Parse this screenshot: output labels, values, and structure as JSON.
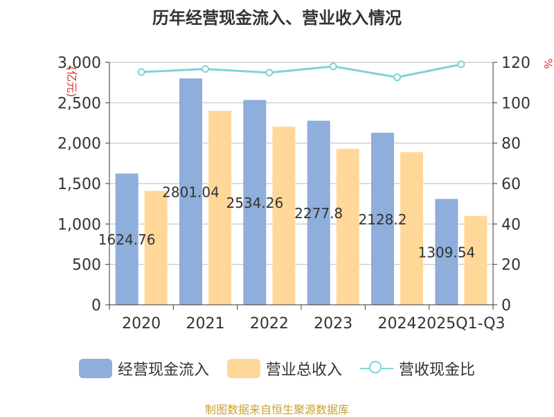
{
  "chart_data": {
    "type": "bar",
    "title": "历年经营现金流入、营业收入情况",
    "categories": [
      "2020",
      "2021",
      "2022",
      "2023",
      "2024",
      "2025Q1-Q3"
    ],
    "series": [
      {
        "name": "经营现金流入",
        "type": "bar",
        "axis": "left",
        "values": [
          1624.76,
          2801.04,
          2534.26,
          2277.8,
          2128.2,
          1309.54
        ],
        "data_labels": [
          "1624.76",
          "2801.04",
          "2534.26",
          "2277.8",
          "2128.2",
          "1309.54"
        ],
        "color": "#8eaedb"
      },
      {
        "name": "营业总收入",
        "type": "bar",
        "axis": "left",
        "values": [
          1410,
          2400,
          2205,
          1930,
          1890,
          1100
        ],
        "color": "#ffd899"
      },
      {
        "name": "营收现金比",
        "type": "line",
        "axis": "right",
        "values": [
          115.2,
          116.7,
          114.9,
          118.0,
          112.6,
          119.0
        ],
        "color": "#7fd3d5"
      }
    ],
    "y_left": {
      "label": "亿元",
      "ylim": [
        0,
        3000
      ],
      "ticks": [
        "0",
        "500",
        "1,000",
        "1,500",
        "2,000",
        "2,500",
        "3,000"
      ]
    },
    "y_right": {
      "label": "%",
      "ylim": [
        0,
        120
      ],
      "ticks": [
        "0",
        "20",
        "40",
        "60",
        "80",
        "100",
        "120"
      ]
    },
    "grid": true,
    "legend": "bottom"
  },
  "colors": {
    "title": "#333333",
    "axis": "#333333",
    "grid": "#bbbbbb",
    "unit": "#e03030",
    "source": "#c9a037"
  },
  "source_text": "制图数据来自恒生聚源数据库"
}
